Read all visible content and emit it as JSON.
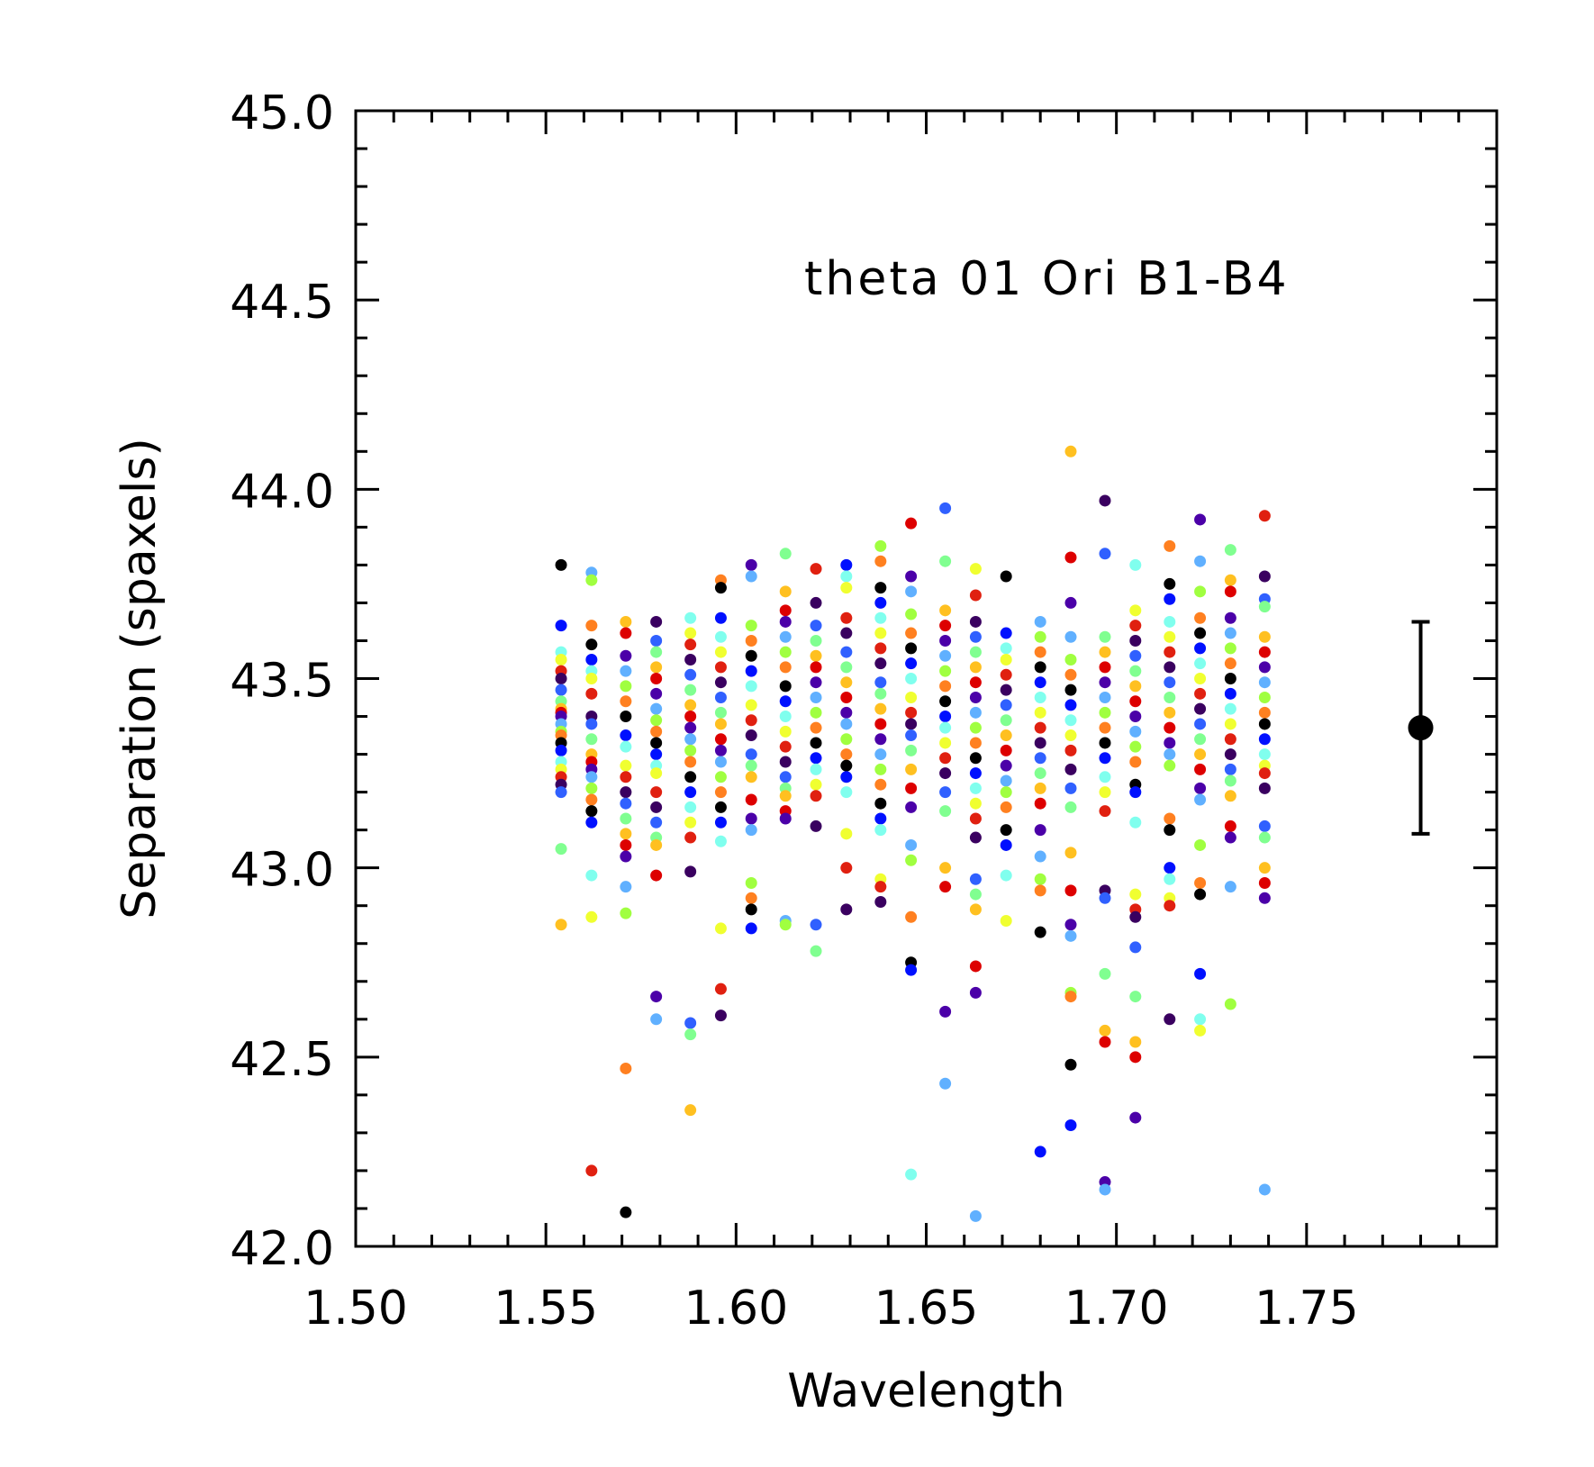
{
  "chart_data": {
    "type": "scatter",
    "xlabel": "Wavelength",
    "ylabel": "Separation (spaxels)",
    "annotation": "theta 01 Ori B1-B4",
    "xlim": [
      1.5,
      1.8
    ],
    "ylim": [
      42.0,
      45.0
    ],
    "x_ticks": [
      1.5,
      1.55,
      1.6,
      1.65,
      1.7,
      1.75
    ],
    "x_tick_labels": [
      "1.50",
      "1.55",
      "1.60",
      "1.65",
      "1.70",
      "1.75"
    ],
    "y_ticks": [
      42.0,
      42.5,
      43.0,
      43.5,
      44.0,
      44.5,
      45.0
    ],
    "y_tick_labels": [
      "42.0",
      "42.5",
      "43.0",
      "43.5",
      "44.0",
      "44.5",
      "45.0"
    ],
    "grid": false,
    "legend": "none",
    "point_colors": [
      "#000000",
      "#3a0060",
      "#4b00a8",
      "#0010ff",
      "#3060ff",
      "#60b0ff",
      "#80ffee",
      "#80ff90",
      "#a0ff40",
      "#f0ff30",
      "#ffc020",
      "#ff8020",
      "#e02010",
      "#dd0000"
    ],
    "wavelengths": [
      1.554,
      1.562,
      1.571,
      1.579,
      1.588,
      1.596,
      1.604,
      1.613,
      1.621,
      1.629,
      1.638,
      1.646,
      1.655,
      1.663,
      1.671,
      1.68,
      1.688,
      1.697,
      1.705,
      1.714,
      1.722,
      1.73,
      1.739
    ],
    "columns": [
      [
        43.8,
        43.64,
        43.57,
        43.55,
        43.52,
        43.5,
        43.47,
        43.44,
        43.42,
        43.41,
        43.4,
        43.38,
        43.36,
        43.35,
        43.33,
        43.31,
        43.28,
        43.26,
        43.24,
        43.22,
        43.2,
        43.05,
        42.85
      ],
      [
        43.78,
        43.76,
        43.64,
        43.59,
        43.55,
        43.52,
        43.5,
        43.46,
        43.4,
        43.38,
        43.34,
        43.3,
        43.28,
        43.26,
        43.24,
        43.21,
        43.18,
        43.15,
        43.12,
        42.98,
        42.87,
        42.2
      ],
      [
        43.65,
        43.62,
        43.56,
        43.52,
        43.48,
        43.44,
        43.4,
        43.35,
        43.32,
        43.27,
        43.24,
        43.2,
        43.17,
        43.13,
        43.09,
        43.06,
        43.03,
        42.95,
        42.88,
        42.47,
        42.09
      ],
      [
        43.65,
        43.6,
        43.57,
        43.53,
        43.5,
        43.46,
        43.42,
        43.39,
        43.36,
        43.33,
        43.3,
        43.27,
        43.25,
        43.2,
        43.16,
        43.12,
        43.08,
        43.06,
        42.98,
        42.66,
        42.6
      ],
      [
        43.66,
        43.62,
        43.59,
        43.55,
        43.51,
        43.47,
        43.43,
        43.4,
        43.37,
        43.34,
        43.31,
        43.28,
        43.24,
        43.2,
        43.16,
        43.12,
        43.08,
        42.99,
        42.59,
        42.56,
        42.36
      ],
      [
        43.76,
        43.74,
        43.66,
        43.61,
        43.57,
        43.53,
        43.49,
        43.45,
        43.41,
        43.38,
        43.34,
        43.31,
        43.28,
        43.24,
        43.2,
        43.16,
        43.12,
        43.07,
        42.84,
        42.68,
        42.61
      ],
      [
        43.8,
        43.77,
        43.64,
        43.6,
        43.56,
        43.52,
        43.48,
        43.43,
        43.39,
        43.35,
        43.3,
        43.27,
        43.24,
        43.18,
        43.13,
        43.1,
        42.96,
        42.92,
        42.89,
        42.84
      ],
      [
        43.83,
        43.73,
        43.68,
        43.65,
        43.61,
        43.57,
        43.53,
        43.48,
        43.44,
        43.4,
        43.36,
        43.32,
        43.28,
        43.24,
        43.21,
        43.19,
        43.15,
        43.13,
        42.86,
        42.85
      ],
      [
        43.79,
        43.7,
        43.64,
        43.6,
        43.56,
        43.53,
        43.49,
        43.45,
        43.41,
        43.37,
        43.33,
        43.29,
        43.26,
        43.22,
        43.19,
        43.11,
        42.85,
        42.78
      ],
      [
        43.8,
        43.77,
        43.74,
        43.66,
        43.62,
        43.57,
        43.53,
        43.49,
        43.45,
        43.41,
        43.38,
        43.34,
        43.3,
        43.27,
        43.24,
        43.2,
        43.09,
        43.0,
        42.89
      ],
      [
        43.85,
        43.81,
        43.74,
        43.7,
        43.66,
        43.62,
        43.58,
        43.54,
        43.49,
        43.46,
        43.42,
        43.38,
        43.34,
        43.3,
        43.26,
        43.22,
        43.17,
        43.13,
        43.1,
        42.97,
        42.95,
        42.91
      ],
      [
        43.91,
        43.77,
        43.73,
        43.67,
        43.62,
        43.58,
        43.54,
        43.5,
        43.45,
        43.41,
        43.38,
        43.35,
        43.31,
        43.26,
        43.21,
        43.16,
        43.06,
        43.02,
        42.87,
        42.75,
        42.73,
        42.19
      ],
      [
        43.95,
        43.81,
        43.68,
        43.64,
        43.6,
        43.56,
        43.52,
        43.48,
        43.44,
        43.4,
        43.37,
        43.33,
        43.29,
        43.25,
        43.2,
        43.15,
        43.0,
        42.95,
        42.62,
        42.43
      ],
      [
        43.79,
        43.72,
        43.65,
        43.61,
        43.57,
        43.53,
        43.49,
        43.45,
        43.41,
        43.37,
        43.33,
        43.29,
        43.25,
        43.21,
        43.17,
        43.13,
        43.08,
        42.97,
        42.93,
        42.89,
        42.74,
        42.67,
        42.08
      ],
      [
        43.77,
        43.62,
        43.58,
        43.55,
        43.51,
        43.47,
        43.43,
        43.39,
        43.35,
        43.31,
        43.27,
        43.23,
        43.2,
        43.16,
        43.1,
        43.06,
        42.98,
        42.86
      ],
      [
        43.65,
        43.61,
        43.57,
        43.53,
        43.49,
        43.45,
        43.41,
        43.37,
        43.33,
        43.29,
        43.25,
        43.21,
        43.17,
        43.1,
        43.03,
        42.97,
        42.94,
        42.83,
        42.25
      ],
      [
        44.1,
        43.82,
        43.7,
        43.61,
        43.55,
        43.51,
        43.47,
        43.43,
        43.39,
        43.35,
        43.31,
        43.26,
        43.21,
        43.16,
        43.04,
        42.94,
        42.85,
        42.82,
        42.67,
        42.66,
        42.48,
        42.32
      ],
      [
        43.97,
        43.83,
        43.61,
        43.57,
        43.53,
        43.49,
        43.45,
        43.41,
        43.37,
        43.33,
        43.29,
        43.24,
        43.2,
        43.15,
        42.94,
        42.92,
        42.72,
        42.57,
        42.54,
        42.17,
        42.15
      ],
      [
        43.8,
        43.68,
        43.64,
        43.6,
        43.56,
        43.52,
        43.48,
        43.44,
        43.4,
        43.36,
        43.32,
        43.28,
        43.22,
        43.2,
        43.12,
        42.93,
        42.89,
        42.87,
        42.79,
        42.66,
        42.54,
        42.5,
        42.34
      ],
      [
        43.85,
        43.75,
        43.71,
        43.65,
        43.61,
        43.57,
        43.53,
        43.49,
        43.45,
        43.41,
        43.37,
        43.33,
        43.3,
        43.27,
        43.13,
        43.1,
        43.0,
        42.97,
        42.92,
        42.9,
        42.6
      ],
      [
        43.92,
        43.81,
        43.73,
        43.66,
        43.62,
        43.58,
        43.54,
        43.5,
        43.46,
        43.42,
        43.38,
        43.34,
        43.3,
        43.26,
        43.21,
        43.18,
        43.06,
        42.96,
        42.93,
        42.72,
        42.6,
        42.57
      ],
      [
        43.84,
        43.76,
        43.73,
        43.66,
        43.62,
        43.58,
        43.54,
        43.5,
        43.46,
        43.42,
        43.38,
        43.34,
        43.3,
        43.26,
        43.23,
        43.19,
        43.11,
        43.08,
        42.95,
        42.64
      ],
      [
        43.93,
        43.77,
        43.71,
        43.69,
        43.61,
        43.57,
        43.53,
        43.49,
        43.45,
        43.41,
        43.38,
        43.34,
        43.3,
        43.27,
        43.25,
        43.21,
        43.11,
        43.08,
        43.0,
        42.96,
        42.92,
        42.15
      ]
    ],
    "mean_point": {
      "x": 1.78,
      "y": 43.37,
      "y_err_low": 43.09,
      "y_err_high": 43.65,
      "color": "#000000"
    }
  }
}
